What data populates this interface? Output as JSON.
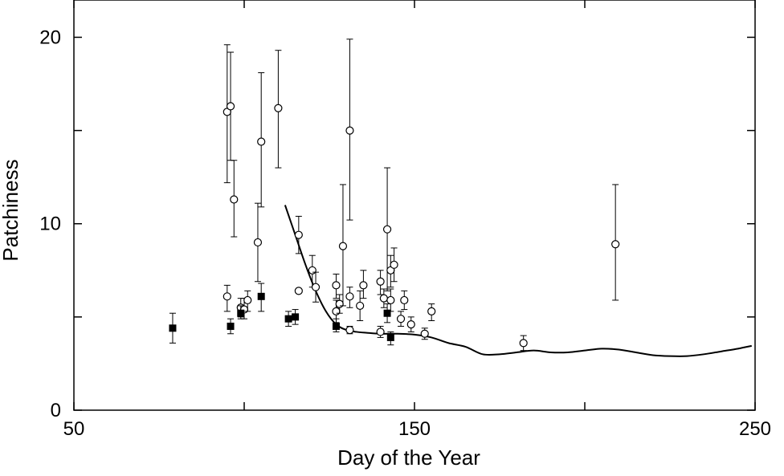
{
  "chart_data": {
    "type": "scatter",
    "title": "",
    "xlabel": "Day of the Year",
    "ylabel": "Patchiness",
    "xlim": [
      50,
      250
    ],
    "ylim": [
      0,
      22
    ],
    "x_ticks": [
      50,
      150,
      250
    ],
    "x_tick_labels": [
      "50",
      "150",
      "250"
    ],
    "x_minor_ticks": [
      100,
      200
    ],
    "y_ticks": [
      0,
      10,
      20
    ],
    "y_tick_labels": [
      "0",
      "10",
      "20"
    ],
    "y_minor_ticks": [
      5,
      15
    ],
    "grid": false,
    "legend": "none",
    "series": [
      {
        "marker": "open-circle",
        "points": [
          {
            "x": 95,
            "y": 16.0,
            "err": [
              12.2,
              19.6
            ]
          },
          {
            "x": 96,
            "y": 16.3,
            "err": [
              13.4,
              19.2
            ]
          },
          {
            "x": 97,
            "y": 11.3,
            "err": [
              9.3,
              13.4
            ]
          },
          {
            "x": 104,
            "y": 9.0,
            "err": [
              6.9,
              11.1
            ]
          },
          {
            "x": 105,
            "y": 14.4,
            "err": [
              10.9,
              18.1
            ]
          },
          {
            "x": 110,
            "y": 16.2,
            "err": [
              13.0,
              19.3
            ]
          },
          {
            "x": 95,
            "y": 6.1,
            "err": [
              5.3,
              6.7
            ]
          },
          {
            "x": 99,
            "y": 5.5,
            "err": [
              5.0,
              6.0
            ]
          },
          {
            "x": 100,
            "y": 5.4,
            "err": [
              4.9,
              6.0
            ]
          },
          {
            "x": 101,
            "y": 5.9,
            "err": [
              5.3,
              6.4
            ]
          },
          {
            "x": 116,
            "y": 9.4,
            "err": [
              8.4,
              10.4
            ]
          },
          {
            "x": 116,
            "y": 6.4,
            "err": null
          },
          {
            "x": 120,
            "y": 7.5,
            "err": [
              6.6,
              8.3
            ]
          },
          {
            "x": 121,
            "y": 6.6,
            "err": [
              5.8,
              7.4
            ]
          },
          {
            "x": 127,
            "y": 6.7,
            "err": [
              6.0,
              7.3
            ]
          },
          {
            "x": 127,
            "y": 5.3,
            "err": [
              4.7,
              5.9
            ]
          },
          {
            "x": 128,
            "y": 5.7,
            "err": [
              5.2,
              6.2
            ]
          },
          {
            "x": 129,
            "y": 8.8,
            "err": [
              5.6,
              12.1
            ]
          },
          {
            "x": 131,
            "y": 15.0,
            "err": [
              10.2,
              19.9
            ]
          },
          {
            "x": 131,
            "y": 6.1,
            "err": [
              5.5,
              6.6
            ]
          },
          {
            "x": 131,
            "y": 4.3,
            "err": [
              4.1,
              4.5
            ]
          },
          {
            "x": 134,
            "y": 5.6,
            "err": [
              4.8,
              6.4
            ]
          },
          {
            "x": 135,
            "y": 6.7,
            "err": [
              6.0,
              7.5
            ]
          },
          {
            "x": 140,
            "y": 4.2,
            "err": [
              3.9,
              4.5
            ]
          },
          {
            "x": 140,
            "y": 6.9,
            "err": [
              6.2,
              7.5
            ]
          },
          {
            "x": 141,
            "y": 6.0,
            "err": [
              5.5,
              6.5
            ]
          },
          {
            "x": 142,
            "y": 9.7,
            "err": [
              6.4,
              13.0
            ]
          },
          {
            "x": 143,
            "y": 7.5,
            "err": [
              6.6,
              8.3
            ]
          },
          {
            "x": 143,
            "y": 5.9,
            "err": [
              5.3,
              6.5
            ]
          },
          {
            "x": 144,
            "y": 7.8,
            "err": [
              6.9,
              8.7
            ]
          },
          {
            "x": 146,
            "y": 4.9,
            "err": [
              4.5,
              5.3
            ]
          },
          {
            "x": 147,
            "y": 5.9,
            "err": [
              5.4,
              6.4
            ]
          },
          {
            "x": 149,
            "y": 4.6,
            "err": [
              4.2,
              5.0
            ]
          },
          {
            "x": 153,
            "y": 4.1,
            "err": [
              3.8,
              4.4
            ]
          },
          {
            "x": 155,
            "y": 5.3,
            "err": [
              4.8,
              5.7
            ]
          },
          {
            "x": 182,
            "y": 3.6,
            "err": [
              3.2,
              4.0
            ]
          },
          {
            "x": 209,
            "y": 8.9,
            "err": [
              5.9,
              12.1
            ]
          }
        ]
      },
      {
        "marker": "filled-square",
        "points": [
          {
            "x": 79,
            "y": 4.4,
            "err": [
              3.6,
              5.2
            ]
          },
          {
            "x": 96,
            "y": 4.5,
            "err": [
              4.1,
              4.9
            ]
          },
          {
            "x": 99,
            "y": 5.2,
            "err": [
              4.9,
              5.6
            ]
          },
          {
            "x": 105,
            "y": 6.1,
            "err": [
              5.3,
              6.8
            ]
          },
          {
            "x": 113,
            "y": 4.9,
            "err": [
              4.5,
              5.3
            ]
          },
          {
            "x": 115,
            "y": 5.0,
            "err": [
              4.6,
              5.4
            ]
          },
          {
            "x": 127,
            "y": 4.5,
            "err": [
              4.2,
              4.9
            ]
          },
          {
            "x": 142,
            "y": 5.2,
            "err": [
              4.7,
              5.7
            ]
          },
          {
            "x": 143,
            "y": 3.9,
            "err": [
              3.5,
              4.2
            ]
          }
        ]
      }
    ],
    "curve": {
      "x": [
        112,
        115,
        118,
        121,
        124,
        127,
        130,
        133,
        136,
        140,
        145,
        150,
        155,
        160,
        165,
        170,
        175,
        180,
        185,
        190,
        195,
        200,
        205,
        210,
        215,
        220,
        225,
        230,
        235,
        240,
        245,
        249
      ],
      "y": [
        11.0,
        9.4,
        7.8,
        6.4,
        5.3,
        4.6,
        4.3,
        4.2,
        4.15,
        4.1,
        4.1,
        4.05,
        3.9,
        3.6,
        3.4,
        3.0,
        3.0,
        3.1,
        3.2,
        3.1,
        3.1,
        3.2,
        3.3,
        3.25,
        3.1,
        2.95,
        2.9,
        2.9,
        3.0,
        3.15,
        3.3,
        3.45
      ]
    }
  }
}
